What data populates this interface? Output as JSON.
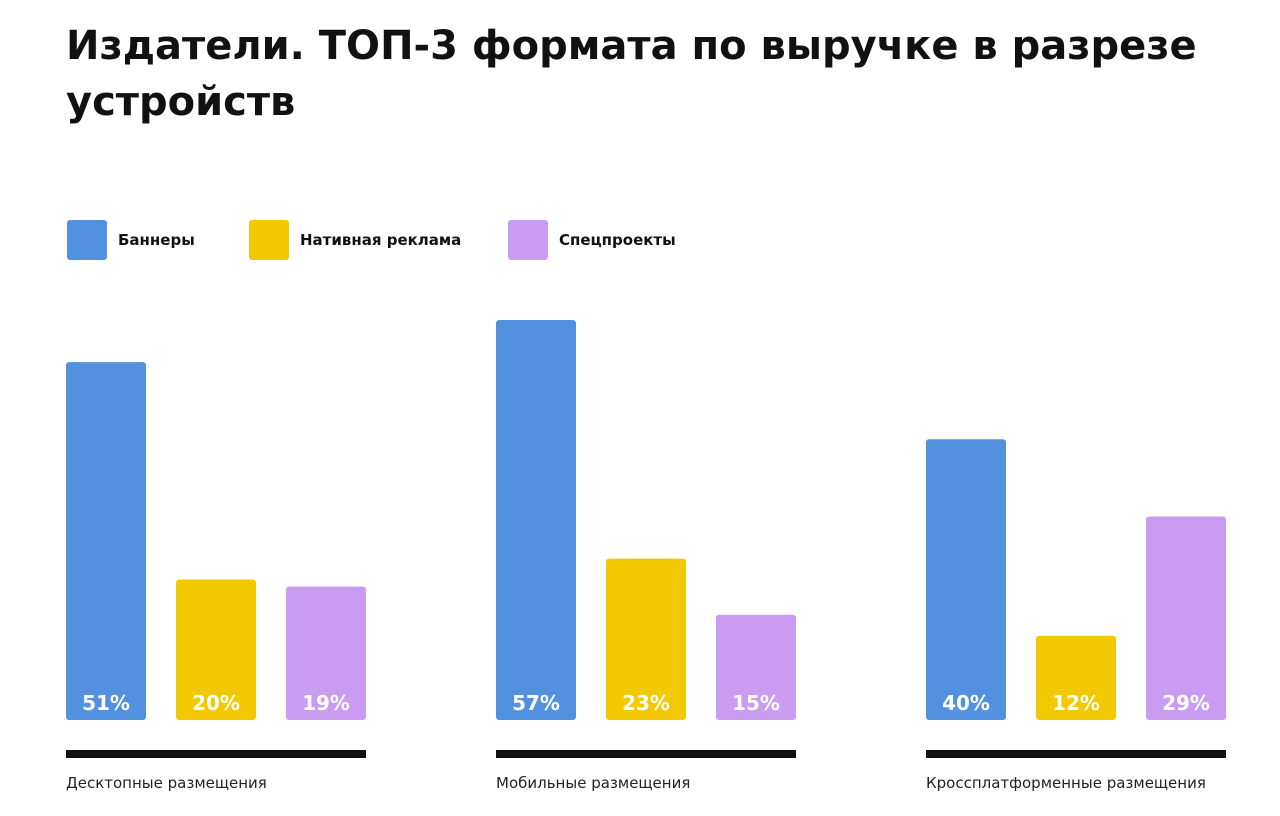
{
  "chart_data": {
    "type": "bar",
    "title": "Издатели. ТОП-3 формата по выручке в разрезе устройств",
    "categories": [
      "Десктопные размещения",
      "Мобильные размещения",
      "Кроссплатформенные размещения"
    ],
    "series": [
      {
        "name": "Баннеры",
        "color": "#5291df",
        "values": [
          51,
          57,
          40
        ]
      },
      {
        "name": "Нативная реклама",
        "color": "#f2c800",
        "values": [
          20,
          23,
          12
        ]
      },
      {
        "name": "Спецпроекты",
        "color": "#c99cf2",
        "values": [
          19,
          15,
          29
        ]
      }
    ],
    "value_suffix": "%",
    "ylim": [
      0,
      57
    ],
    "legend_position": "top-left",
    "grid": false
  }
}
